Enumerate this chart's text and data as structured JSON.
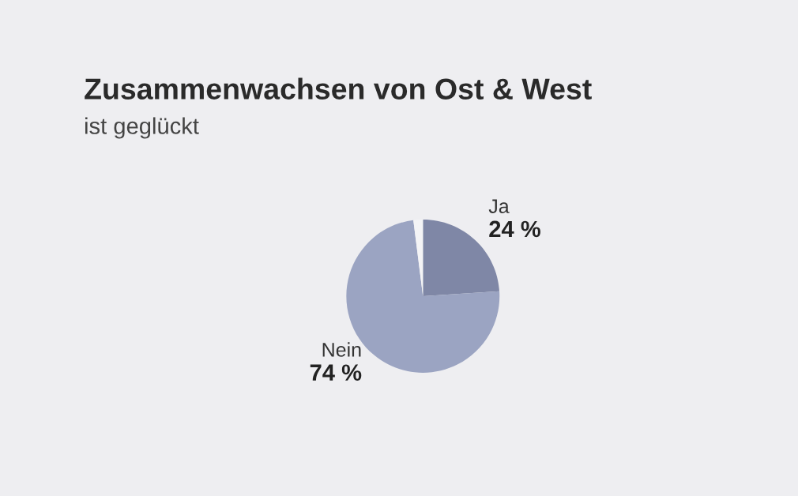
{
  "chart_data": {
    "type": "pie",
    "title": "Zusammenwachsen von Ost & West",
    "subtitle": "ist geglückt",
    "categories": [
      "Ja",
      "Nein",
      null
    ],
    "values": [
      24,
      74,
      2
    ],
    "value_labels": [
      "24 %",
      "74 %",
      null
    ],
    "colors": [
      "#7f87a6",
      "#9ba4c2",
      "#f4f4f6"
    ]
  }
}
